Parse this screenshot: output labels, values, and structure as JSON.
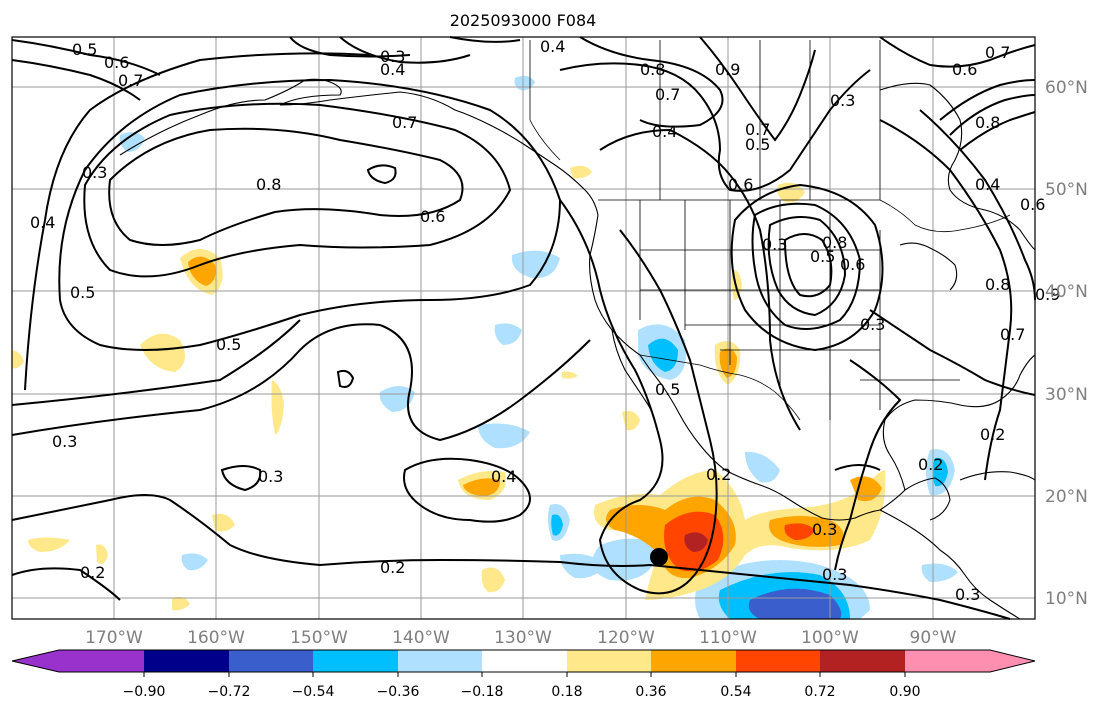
{
  "title": "2025093000 F084",
  "map": {
    "lat_labels": [
      "60°N",
      "50°N",
      "40°N",
      "30°N",
      "20°N",
      "10°N"
    ],
    "lon_labels": [
      "170°W",
      "160°W",
      "150°W",
      "140°W",
      "130°W",
      "120°W",
      "110°W",
      "100°W",
      "90°W"
    ],
    "contour_labels": [
      "0.5",
      "0.6",
      "0.7",
      "0.3",
      "0.4",
      "0.3",
      "0.4",
      "0.7",
      "0.8",
      "0.7",
      "0.6",
      "0.6",
      "0.7",
      "0.3",
      "0.7",
      "0.4",
      "0.9",
      "0.5",
      "0.6",
      "0.8",
      "0.8",
      "0.4",
      "0.6",
      "0.3",
      "0.5",
      "0.4",
      "0.8",
      "0.5",
      "0.6",
      "0.3",
      "0.9",
      "0.5",
      "0.8",
      "0.7",
      "0.5",
      "0.3",
      "0.3",
      "0.4",
      "0.2",
      "0.3",
      "0.2",
      "0.2",
      "0.3",
      "0.3",
      "0.2",
      "0.2"
    ],
    "marker": "storm-position"
  },
  "colorbar": {
    "ticks": [
      "−0.90",
      "−0.72",
      "−0.54",
      "−0.36",
      "−0.18",
      "0.18",
      "0.36",
      "0.54",
      "0.72",
      "0.90"
    ],
    "colors": [
      "#9932cc",
      "#00008b",
      "#3a5fcd",
      "#00bfff",
      "#b0e0ff",
      "#ffffff",
      "#ffe88a",
      "#ffa500",
      "#ff4500",
      "#b22222",
      "#ff8fb0"
    ]
  }
}
